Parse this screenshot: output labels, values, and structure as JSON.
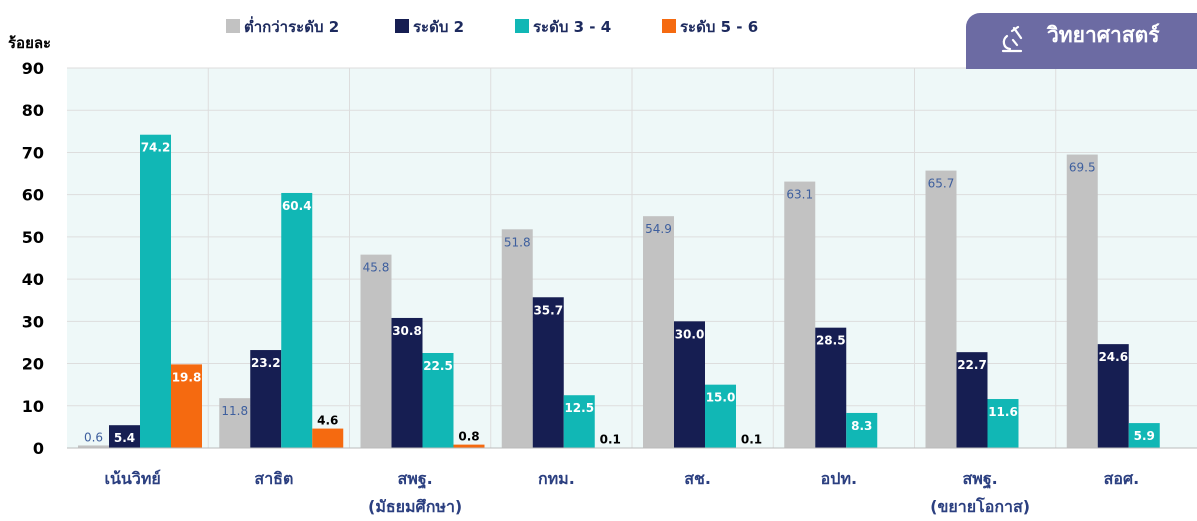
{
  "chart_data": {
    "type": "bar",
    "ylabel": "ร้อยละ",
    "ylim": [
      0,
      90
    ],
    "yticks": [
      0,
      10,
      20,
      30,
      40,
      50,
      60,
      70,
      80,
      90
    ],
    "grid": true,
    "legend_position": "top",
    "categories": [
      [
        "เน้นวิทย์"
      ],
      [
        "สาธิต"
      ],
      [
        "สพฐ.",
        "(มัธยมศึกษา)"
      ],
      [
        "กทม."
      ],
      [
        "สช."
      ],
      [
        "อปท."
      ],
      [
        "สพฐ.",
        "(ขยายโอกาส)"
      ],
      [
        "สอศ."
      ]
    ],
    "series": [
      {
        "name": "ต่ำกว่าระดับ 2",
        "color": "#c2c2c2",
        "label_color": "#3e5f9e",
        "values": [
          0.6,
          11.8,
          45.8,
          51.8,
          54.9,
          63.1,
          65.7,
          69.5
        ],
        "labels": [
          "0.6",
          "11.8",
          "45.8",
          "51.8",
          "54.9",
          "63.1",
          "65.7",
          "69.5"
        ]
      },
      {
        "name": "ระดับ 2",
        "color": "#161e52",
        "label_color": "#ffffff",
        "values": [
          5.4,
          23.2,
          30.8,
          35.7,
          30.0,
          28.5,
          22.7,
          24.6
        ],
        "labels": [
          "5.4",
          "23.2",
          "30.8",
          "35.7",
          "30.0",
          "28.5",
          "22.7",
          "24.6"
        ]
      },
      {
        "name": "ระดับ 3 - 4",
        "color": "#11b7b5",
        "label_color": "#ffffff",
        "values": [
          74.2,
          60.4,
          22.5,
          12.5,
          15.0,
          8.3,
          11.6,
          5.9
        ],
        "labels": [
          "74.2",
          "60.4",
          "22.5",
          "12.5",
          "15.0",
          "8.3",
          "11.6",
          "5.9"
        ]
      },
      {
        "name": "ระดับ 5 - 6",
        "color": "#f56a10",
        "label_color": "#ffffff",
        "values": [
          19.8,
          4.6,
          0.8,
          0.1,
          0.1,
          null,
          null,
          null
        ],
        "labels": [
          "19.8",
          "4.6",
          "0.8",
          "0.1",
          "0.1",
          null,
          null,
          null
        ]
      }
    ]
  },
  "badge": {
    "label": "วิทยาศาสตร์",
    "icon": "microscope-icon",
    "color": "#6c6ba3"
  },
  "colors": {
    "plot_background": "#eef8f8",
    "grid": "#dddddd",
    "axis_text": "#000000",
    "category_text": "#2b3f80"
  }
}
